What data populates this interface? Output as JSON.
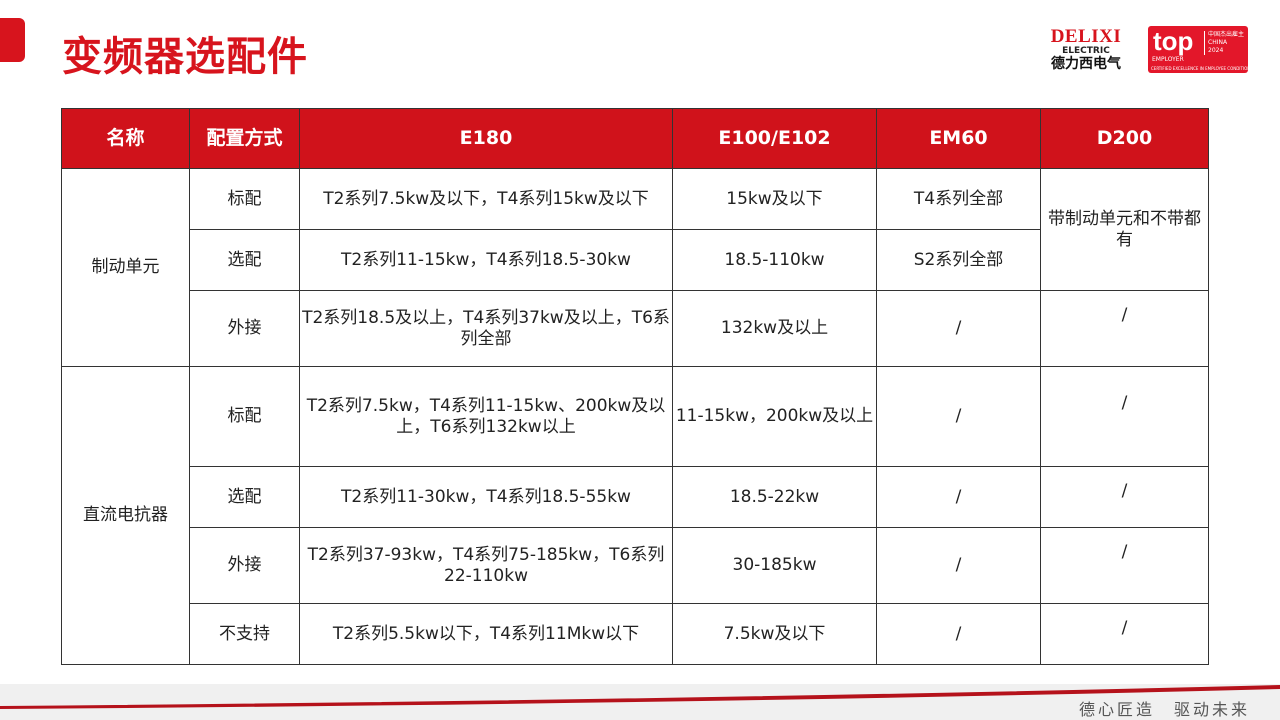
{
  "title": "变频器选配件",
  "logo": {
    "brand_en": "DELIXI",
    "brand_sub": "ELECTRIC",
    "brand_cn": "德力西电气",
    "badge_top": "top",
    "badge_employer": "EMPLOYER",
    "badge_region": "中国杰出雇主",
    "badge_country": "CHINA",
    "badge_year": "2024",
    "badge_caption": "CERTIFIED EXCELLENCE IN EMPLOYEE CONDITIONS"
  },
  "table": {
    "headers": [
      "名称",
      "配置方式",
      "E180",
      "E100/E102",
      "EM60",
      "D200"
    ],
    "groups": [
      {
        "name": "制动单元",
        "rows": [
          [
            "标配",
            "T2系列7.5kw及以下，T4系列15kw及以下",
            "15kw及以下",
            "T4系列全部"
          ],
          [
            "选配",
            "T2系列11-15kw，T4系列18.5-30kw",
            "18.5-110kw",
            "S2系列全部"
          ],
          [
            "外接",
            "T2系列18.5及以上，T4系列37kw及以上，T6系列全部",
            "132kw及以上",
            "/"
          ]
        ],
        "d200": [
          "带制动单元和不带都有",
          "/"
        ]
      },
      {
        "name": "直流电抗器",
        "rows": [
          [
            "标配",
            "T2系列7.5kw，T4系列11-15kw、200kw及以上，T6系列132kw以上",
            "11-15kw，200kw及以上",
            "/",
            "/"
          ],
          [
            "选配",
            "T2系列11-30kw，T4系列18.5-55kw",
            "18.5-22kw",
            "/",
            "/"
          ],
          [
            "外接",
            "T2系列37-93kw，T4系列75-185kw，T6系列22-110kw",
            "30-185kw",
            "/",
            "/"
          ],
          [
            "不支持",
            "T2系列5.5kw以下，T4系列11Mkw以下",
            "7.5kw及以下",
            "/",
            "/"
          ]
        ]
      }
    ]
  },
  "footer": {
    "slogan": "德心匠造　驱动未来"
  },
  "colors": {
    "brand_red": "#d0121b"
  }
}
